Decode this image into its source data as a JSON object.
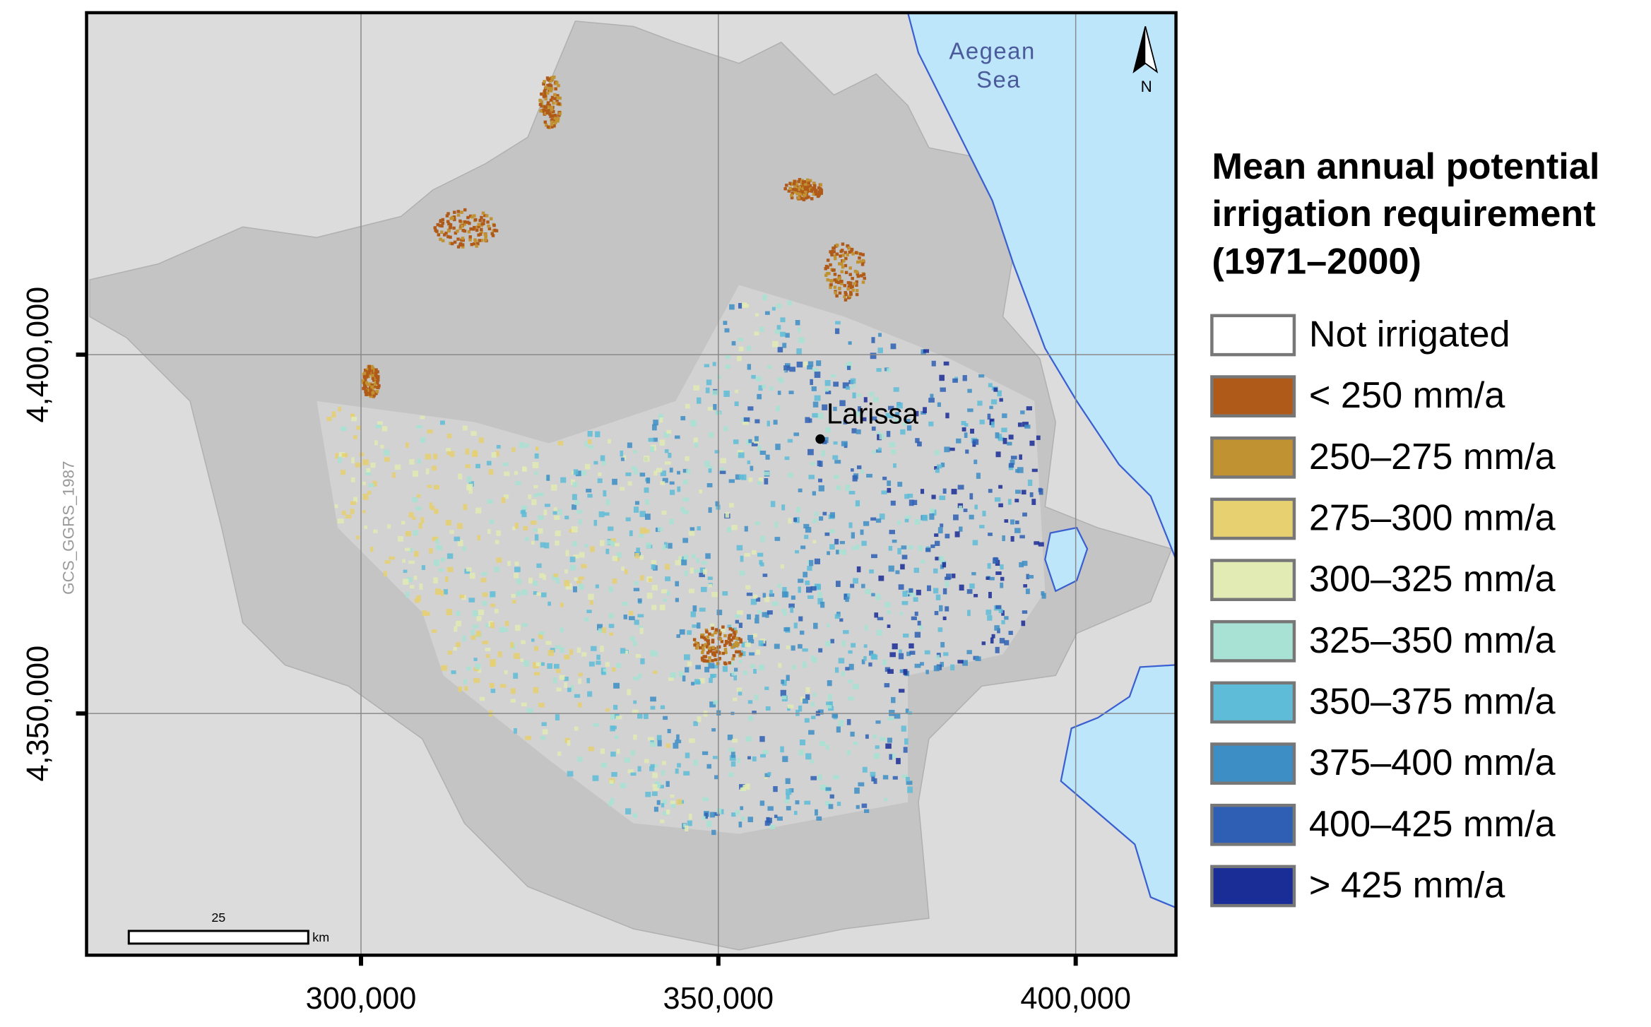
{
  "map": {
    "sea_label": [
      "Aegean",
      "Sea"
    ],
    "north_label": "N",
    "city": "Larissa",
    "crs_label": "GCS_GGRS_1987",
    "scale_bar": {
      "length": 25,
      "unit": "km"
    },
    "grid": true,
    "x_axis": {
      "lim": [
        261600,
        414030
      ],
      "ticks": [
        {
          "value": 300000,
          "label": "300,000"
        },
        {
          "value": 350000,
          "label": "350,000"
        },
        {
          "value": 400000,
          "label": "400,000"
        }
      ]
    },
    "y_axis": {
      "lim": [
        4316320,
        4447650
      ],
      "ticks": [
        {
          "value": 4350000,
          "label": "4,350,000"
        },
        {
          "value": 4400000,
          "label": "4,400,000"
        }
      ]
    }
  },
  "legend": {
    "title": [
      "Mean annual potential",
      "irrigation requirement",
      "(1971–2000)"
    ],
    "items": [
      {
        "label": "Not irrigated",
        "color": "#ffffff"
      },
      {
        "label": "< 250 mm/a",
        "color": "#b05a1a"
      },
      {
        "label": "250–275 mm/a",
        "color": "#c09232"
      },
      {
        "label": "275–300 mm/a",
        "color": "#e6d070"
      },
      {
        "label": "300–325 mm/a",
        "color": "#e2ebb4"
      },
      {
        "label": "325–350 mm/a",
        "color": "#a8e2d4"
      },
      {
        "label": "350–375 mm/a",
        "color": "#5ebcd8"
      },
      {
        "label": "375–400 mm/a",
        "color": "#3e8ec6"
      },
      {
        "label": "400–425 mm/a",
        "color": "#2e5fb4"
      },
      {
        "label": "> 425 mm/a",
        "color": "#1a2d96"
      }
    ]
  }
}
